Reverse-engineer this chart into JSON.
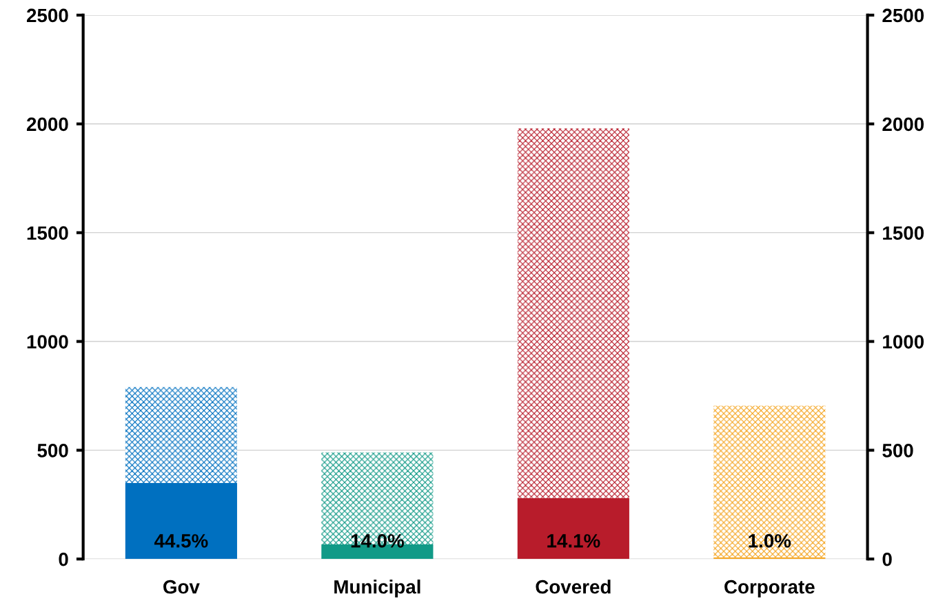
{
  "chart_data": {
    "type": "bar",
    "stacked": true,
    "categories": [
      "Gov",
      "Municipal",
      "Covered",
      "Corporate"
    ],
    "series": [
      {
        "colors": [
          "#0070c0",
          "#119a87",
          "#b81c2b",
          "#f5a623"
        ],
        "values": [
          350,
          67,
          280,
          7
        ]
      },
      {
        "colors": [
          "#0070c0",
          "#119a87",
          "#b81c2b",
          "#f5a623"
        ],
        "values": [
          440,
          423,
          1700,
          698
        ]
      }
    ],
    "ylim": [
      0,
      2500
    ],
    "yticks": [
      0,
      500,
      1000,
      1500,
      2000,
      2500
    ],
    "y2lim": [
      0,
      2500
    ],
    "y2ticks": [
      0,
      500,
      1000,
      1500,
      2000,
      2500
    ],
    "grid": true,
    "annotations": [
      "44.5%",
      "14.0%",
      "14.1%",
      "1.0%"
    ]
  }
}
